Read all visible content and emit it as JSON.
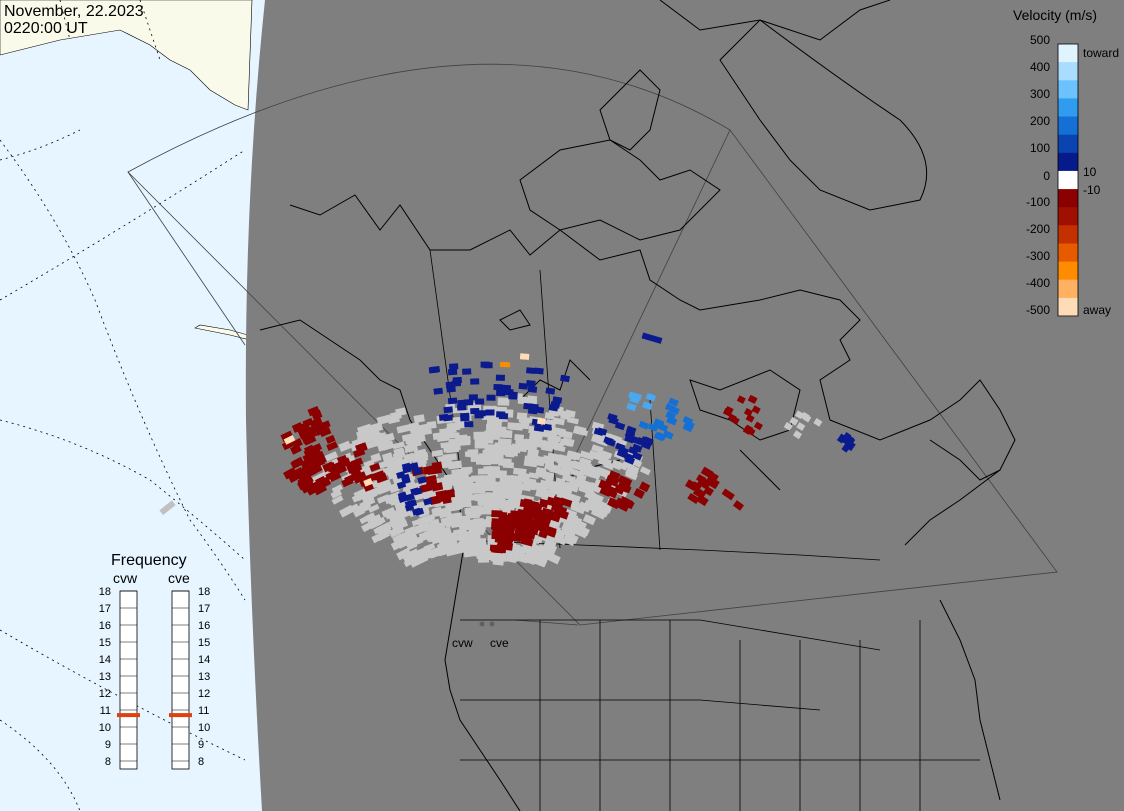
{
  "header": {
    "date": "November, 22.2023",
    "time": "0220:00 UT"
  },
  "legend": {
    "title": "Velocity (m/s)",
    "ticks": [
      "500",
      "400",
      "300",
      "200",
      "100",
      "10",
      "0",
      "-10",
      "-100",
      "-200",
      "-300",
      "-400",
      "-500"
    ],
    "toward_label": "toward",
    "away_label": "away",
    "colors": [
      "#dff4ff",
      "#a9dcff",
      "#6cc2ff",
      "#2f9cf0",
      "#1570d6",
      "#0b44b0",
      "#061a8c",
      "#ffffff",
      "#8b0000",
      "#a01000",
      "#c43000",
      "#e65a00",
      "#ff8c00",
      "#ffb060",
      "#ffdcb8"
    ]
  },
  "frequency": {
    "title": "Frequency",
    "stations": [
      "cvw",
      "cve"
    ],
    "scale": [
      "18",
      "17",
      "16",
      "15",
      "14",
      "13",
      "12",
      "11",
      "10",
      "9",
      "8"
    ],
    "marker_value": 10.7,
    "marker_color": "#e04010"
  },
  "radar_labels": [
    "cvw",
    "cve"
  ],
  "colors": {
    "background": "#7f7f7f",
    "ocean": "#e6f5ff",
    "land_outside": "#fafaea",
    "ground_scatter": "#c8c8c8"
  }
}
